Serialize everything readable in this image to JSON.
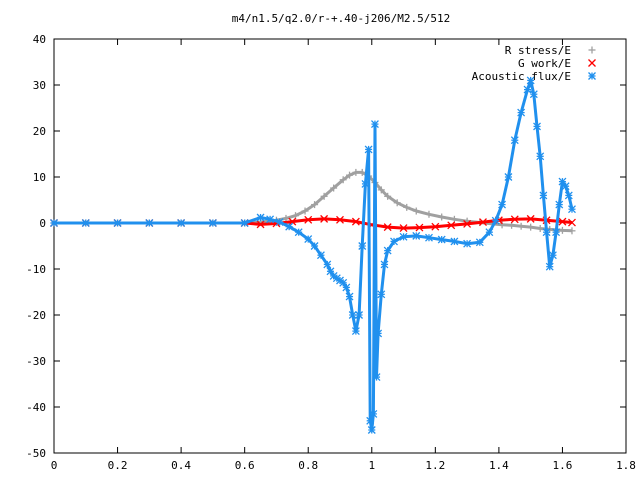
{
  "chart_data": {
    "type": "scatter",
    "title": "m4/n1.5/q2.0/r-+.40-j206/M2.5/512",
    "xlabel": "",
    "ylabel": "",
    "xlim": [
      0,
      1.8
    ],
    "ylim": [
      -50,
      40
    ],
    "x_ticks": [
      0,
      0.2,
      0.4,
      0.6,
      0.8,
      1,
      1.2,
      1.4,
      1.6,
      1.8
    ],
    "y_ticks": [
      -50,
      -40,
      -30,
      -20,
      -10,
      0,
      10,
      20,
      30,
      40
    ],
    "x_tick_labels": [
      "0",
      "0.2",
      "0.4",
      "0.6",
      "0.8",
      "1",
      "1.2",
      "1.4",
      "1.6",
      "1.8"
    ],
    "y_tick_labels": [
      "-50",
      "-40",
      "-30",
      "-20",
      "-10",
      "0",
      "10",
      "20",
      "30",
      "40"
    ],
    "grid": false,
    "legend_position": "top-right",
    "series": [
      {
        "name": "R stress/E",
        "marker": "plus",
        "color": "#a0a0a0",
        "x": [
          0.0,
          0.1,
          0.2,
          0.3,
          0.4,
          0.5,
          0.6,
          0.65,
          0.7,
          0.73,
          0.76,
          0.79,
          0.82,
          0.85,
          0.88,
          0.91,
          0.93,
          0.95,
          0.97,
          0.99,
          1.01,
          1.03,
          1.05,
          1.08,
          1.11,
          1.14,
          1.18,
          1.22,
          1.26,
          1.3,
          1.34,
          1.38,
          1.41,
          1.44,
          1.47,
          1.5,
          1.53,
          1.56,
          1.6,
          1.63
        ],
        "y": [
          0,
          0,
          0,
          0,
          0,
          0,
          0,
          0.2,
          0.6,
          1.0,
          1.6,
          2.6,
          4.0,
          5.8,
          7.6,
          9.4,
          10.4,
          11.0,
          11.0,
          10.2,
          8.8,
          7.2,
          5.8,
          4.4,
          3.4,
          2.6,
          1.9,
          1.3,
          0.8,
          0.4,
          0.1,
          -0.2,
          -0.4,
          -0.5,
          -0.7,
          -0.9,
          -1.2,
          -1.4,
          -1.6,
          -1.7
        ]
      },
      {
        "name": "G work/E",
        "marker": "cross",
        "color": "#ff0000",
        "x": [
          0.0,
          0.1,
          0.2,
          0.3,
          0.4,
          0.5,
          0.6,
          0.65,
          0.7,
          0.75,
          0.8,
          0.85,
          0.9,
          0.95,
          1.0,
          1.05,
          1.1,
          1.15,
          1.2,
          1.25,
          1.3,
          1.35,
          1.4,
          1.45,
          1.5,
          1.55,
          1.6,
          1.63
        ],
        "y": [
          0,
          0,
          0,
          0,
          0,
          0,
          0,
          -0.3,
          -0.1,
          0.3,
          0.7,
          0.9,
          0.7,
          0.3,
          -0.4,
          -0.9,
          -1.1,
          -1.0,
          -0.8,
          -0.5,
          -0.2,
          0.2,
          0.6,
          0.8,
          0.9,
          0.6,
          0.3,
          0.1
        ]
      },
      {
        "name": "Acoustic flux/E",
        "marker": "asterisk",
        "color": "#2090ee",
        "x": [
          0.0,
          0.1,
          0.2,
          0.3,
          0.4,
          0.5,
          0.6,
          0.65,
          0.68,
          0.71,
          0.74,
          0.77,
          0.8,
          0.82,
          0.84,
          0.86,
          0.87,
          0.88,
          0.89,
          0.9,
          0.91,
          0.92,
          0.93,
          0.94,
          0.95,
          0.96,
          0.97,
          0.98,
          0.99,
          0.995,
          1.0,
          1.005,
          1.01,
          1.015,
          1.02,
          1.03,
          1.04,
          1.05,
          1.07,
          1.1,
          1.14,
          1.18,
          1.22,
          1.26,
          1.3,
          1.34,
          1.37,
          1.39,
          1.41,
          1.43,
          1.45,
          1.47,
          1.49,
          1.5,
          1.51,
          1.52,
          1.53,
          1.54,
          1.55,
          1.56,
          1.57,
          1.58,
          1.59,
          1.6,
          1.61,
          1.62,
          1.63
        ],
        "y": [
          0,
          0,
          0,
          0,
          0,
          0,
          0,
          1.2,
          0.8,
          0.2,
          -0.8,
          -2.0,
          -3.5,
          -5.0,
          -7.0,
          -9.0,
          -10.5,
          -11.5,
          -12.0,
          -12.5,
          -13.0,
          -14.0,
          -16.0,
          -20.0,
          -23.5,
          -20.0,
          -5.0,
          8.5,
          16.0,
          -43.0,
          -45.0,
          -41.5,
          21.5,
          -33.5,
          -24.0,
          -15.5,
          -9.0,
          -6.0,
          -4.0,
          -3.0,
          -2.8,
          -3.2,
          -3.6,
          -4.0,
          -4.5,
          -4.2,
          -2.0,
          0.5,
          4.0,
          10.0,
          18.0,
          24.0,
          29.0,
          31.0,
          28.0,
          21.0,
          14.5,
          6.0,
          -2.0,
          -9.5,
          -7.0,
          -2.0,
          4.0,
          9.0,
          8.0,
          6.0,
          3.0
        ]
      }
    ]
  }
}
